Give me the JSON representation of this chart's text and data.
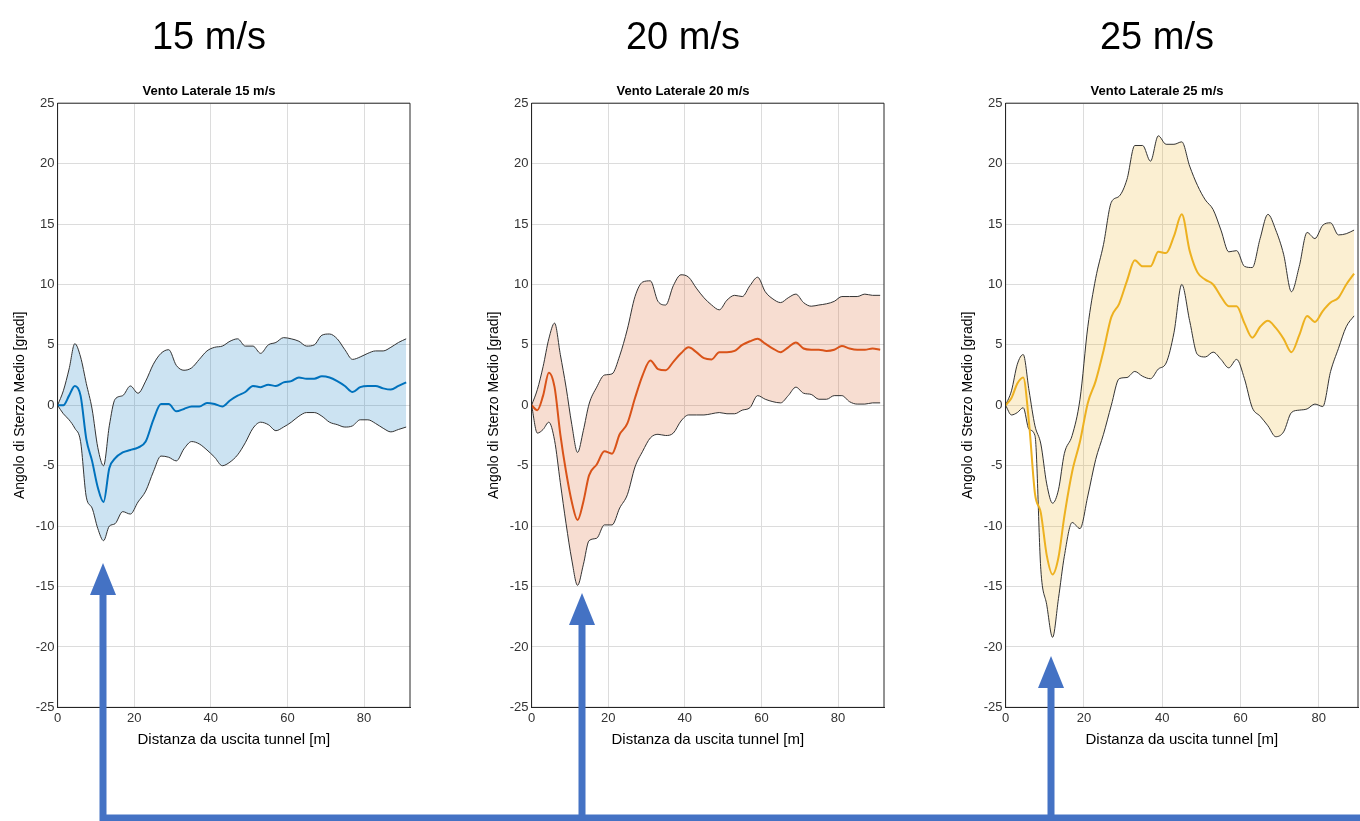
{
  "chart_data": [
    {
      "type": "line",
      "title": "15 m/s",
      "subtitle": "Vento Laterale 15 m/s",
      "xlabel": "Distanza da uscita tunnel [m]",
      "ylabel": "Angolo di Sterzo Medio [gradi]",
      "xlim": [
        0,
        92
      ],
      "xticks": [
        0,
        20,
        40,
        60,
        80
      ],
      "ylim": [
        -25,
        25
      ],
      "yticks": [
        -25,
        -20,
        -15,
        -10,
        -5,
        0,
        5,
        10,
        15,
        20,
        25
      ],
      "grid": true,
      "x": [
        0,
        1.5,
        3,
        4.5,
        6,
        7.5,
        9,
        10.5,
        12,
        13.5,
        15,
        17,
        19,
        21,
        23,
        25,
        27,
        29,
        31,
        33,
        35,
        37,
        39,
        41,
        43,
        45,
        47,
        49,
        51,
        53,
        55,
        57,
        59,
        61,
        63,
        65,
        67,
        69,
        71,
        73,
        75,
        77,
        79,
        81,
        83,
        85,
        87,
        89,
        91
      ],
      "series": [
        {
          "color": "#0072bd",
          "values": [
            0,
            0,
            0.8,
            1.6,
            0.8,
            -2.8,
            -4.6,
            -6.8,
            -8.0,
            -5.2,
            -4.4,
            -3.9,
            -3.7,
            -3.5,
            -3.0,
            -1.2,
            0.1,
            0.1,
            -0.5,
            -0.3,
            -0.1,
            -0.1,
            0.2,
            0.1,
            -0.1,
            0.4,
            0.8,
            1.1,
            1.6,
            1.5,
            1.7,
            1.6,
            1.9,
            2.0,
            2.3,
            2.2,
            2.2,
            2.4,
            2.3,
            2.0,
            1.6,
            1.1,
            1.5,
            1.6,
            1.6,
            1.4,
            1.3,
            1.6,
            1.9
          ],
          "upper": [
            0,
            1.2,
            3.0,
            5.1,
            4.0,
            1.8,
            -0.3,
            -3.5,
            -5.0,
            -1.7,
            0.5,
            0.8,
            1.6,
            1.0,
            2.0,
            3.4,
            4.3,
            4.6,
            3.3,
            2.9,
            3.1,
            3.8,
            4.5,
            4.8,
            4.9,
            5.3,
            5.5,
            4.9,
            4.9,
            4.3,
            5.0,
            5.2,
            5.6,
            5.5,
            5.3,
            4.9,
            5.0,
            5.8,
            5.9,
            5.5,
            4.6,
            3.8,
            4.0,
            4.3,
            4.5,
            4.5,
            4.8,
            5.2,
            5.5
          ],
          "lower": [
            0,
            -0.7,
            -1.2,
            -1.9,
            -3.0,
            -7.6,
            -8.5,
            -10.2,
            -11.2,
            -10.0,
            -9.8,
            -8.8,
            -9.0,
            -8.0,
            -7.1,
            -5.5,
            -4.2,
            -4.3,
            -4.6,
            -3.6,
            -3.0,
            -3.2,
            -3.7,
            -4.3,
            -5.0,
            -4.7,
            -4.1,
            -3.1,
            -1.9,
            -1.4,
            -1.6,
            -2.1,
            -1.8,
            -1.4,
            -0.9,
            -0.6,
            -0.6,
            -0.9,
            -1.4,
            -1.6,
            -1.8,
            -1.7,
            -1.2,
            -1.2,
            -1.5,
            -1.9,
            -2.2,
            -2.0,
            -1.8
          ]
        },
        {
          "type": "line",
          "color": "#333333",
          "values": [
            0,
            1.2,
            3.0,
            5.1,
            4.0,
            1.8,
            -0.3,
            -3.5,
            -5.0,
            -1.7,
            0.5,
            0.8,
            1.6,
            1.0,
            2.0,
            3.4,
            4.3,
            4.6,
            3.3,
            2.9,
            3.1,
            3.8,
            4.5,
            4.8,
            4.9,
            5.3,
            5.5,
            4.9,
            4.9,
            4.3,
            5.0,
            5.2,
            5.6,
            5.5,
            5.3,
            4.9,
            5.0,
            5.8,
            5.9,
            5.5,
            4.6,
            3.8,
            4.0,
            4.3,
            4.5,
            4.5,
            4.8,
            5.2,
            5.5
          ]
        },
        {
          "type": "line",
          "color": "#333333",
          "values": [
            0,
            -0.7,
            -1.2,
            -1.9,
            -3.0,
            -7.6,
            -8.5,
            -10.2,
            -11.2,
            -10.0,
            -9.8,
            -8.8,
            -9.0,
            -8.0,
            -7.1,
            -5.5,
            -4.2,
            -4.3,
            -4.6,
            -3.6,
            -3.0,
            -3.2,
            -3.7,
            -4.3,
            -5.0,
            -4.7,
            -4.1,
            -3.1,
            -1.9,
            -1.4,
            -1.6,
            -2.1,
            -1.8,
            -1.4,
            -0.9,
            -0.6,
            -0.6,
            -0.9,
            -1.4,
            -1.6,
            -1.8,
            -1.7,
            -1.2,
            -1.2,
            -1.5,
            -1.9,
            -2.2,
            -2.0,
            -1.8
          ]
        }
      ]
    },
    {
      "type": "line",
      "title": "20 m/s",
      "subtitle": "Vento Laterale 20 m/s",
      "xlabel": "Distanza da uscita tunnel [m]",
      "ylabel": "Angolo di Sterzo Medio [gradi]",
      "xlim": [
        0,
        92
      ],
      "xticks": [
        0,
        20,
        40,
        60,
        80
      ],
      "ylim": [
        -25,
        25
      ],
      "yticks": [
        -25,
        -20,
        -15,
        -10,
        -5,
        0,
        5,
        10,
        15,
        20,
        25
      ],
      "grid": true,
      "x": [
        0,
        1.5,
        3,
        4.5,
        6,
        7.5,
        9,
        10.5,
        12,
        13.5,
        15,
        17,
        19,
        21,
        23,
        25,
        27,
        29,
        31,
        33,
        35,
        37,
        39,
        41,
        43,
        45,
        47,
        49,
        51,
        53,
        55,
        57,
        59,
        61,
        63,
        65,
        67,
        69,
        71,
        73,
        75,
        77,
        79,
        81,
        83,
        85,
        87,
        89,
        91
      ],
      "series": [
        {
          "color": "#d95319",
          "values": [
            0,
            -0.4,
            0.8,
            2.7,
            1.5,
            -2.4,
            -5.5,
            -8.0,
            -9.5,
            -8.0,
            -5.8,
            -4.9,
            -3.8,
            -4.0,
            -2.4,
            -1.5,
            0.6,
            2.5,
            3.7,
            3.0,
            2.9,
            3.6,
            4.3,
            4.8,
            4.4,
            3.9,
            3.8,
            4.4,
            4.4,
            4.5,
            5.0,
            5.3,
            5.5,
            5.1,
            4.7,
            4.4,
            4.8,
            5.2,
            4.7,
            4.6,
            4.6,
            4.5,
            4.6,
            4.9,
            4.7,
            4.6,
            4.6,
            4.7,
            4.6
          ],
          "upper": [
            0,
            1.3,
            3.2,
            5.5,
            6.8,
            4.2,
            1.5,
            -1.6,
            -3.9,
            -2.1,
            0.1,
            1.5,
            2.5,
            2.6,
            4.1,
            6.3,
            9.0,
            10.2,
            10.3,
            8.6,
            8.3,
            9.9,
            10.8,
            10.6,
            9.7,
            8.9,
            8.3,
            7.9,
            8.7,
            9.1,
            9.0,
            9.9,
            10.6,
            9.4,
            8.8,
            8.5,
            8.9,
            9.2,
            8.5,
            8.2,
            8.3,
            8.4,
            8.6,
            9.0,
            9.0,
            9.0,
            9.2,
            9.1,
            9.1
          ],
          "lower": [
            0,
            -2.3,
            -2.0,
            -1.4,
            -2.9,
            -6.4,
            -9.8,
            -12.8,
            -14.9,
            -13.2,
            -11.2,
            -11.0,
            -9.9,
            -9.9,
            -8.5,
            -7.4,
            -5.1,
            -3.8,
            -2.7,
            -2.4,
            -2.5,
            -2.3,
            -1.3,
            -0.8,
            -0.8,
            -0.8,
            -0.7,
            -0.6,
            -0.7,
            -0.7,
            -0.4,
            -0.2,
            0.8,
            0.5,
            0.3,
            0.2,
            0.8,
            1.5,
            1.0,
            0.9,
            0.5,
            0.5,
            0.8,
            0.8,
            0.3,
            0.1,
            0.1,
            0.2,
            0.2
          ]
        },
        {
          "type": "line",
          "color": "#333333",
          "values": [
            0,
            1.3,
            3.2,
            5.5,
            6.8,
            4.2,
            1.5,
            -1.6,
            -3.9,
            -2.1,
            0.1,
            1.5,
            2.5,
            2.6,
            4.1,
            6.3,
            9.0,
            10.2,
            10.3,
            8.6,
            8.3,
            9.9,
            10.8,
            10.6,
            9.7,
            8.9,
            8.3,
            7.9,
            8.7,
            9.1,
            9.0,
            9.9,
            10.6,
            9.4,
            8.8,
            8.5,
            8.9,
            9.2,
            8.5,
            8.2,
            8.3,
            8.4,
            8.6,
            9.0,
            9.0,
            9.0,
            9.2,
            9.1,
            9.1
          ]
        },
        {
          "type": "line",
          "color": "#333333",
          "values": [
            0,
            -2.3,
            -2.0,
            -1.4,
            -2.9,
            -6.4,
            -9.8,
            -12.8,
            -14.9,
            -13.2,
            -11.2,
            -11.0,
            -9.9,
            -9.9,
            -8.5,
            -7.4,
            -5.1,
            -3.8,
            -2.7,
            -2.4,
            -2.5,
            -2.3,
            -1.3,
            -0.8,
            -0.8,
            -0.8,
            -0.7,
            -0.6,
            -0.7,
            -0.7,
            -0.4,
            -0.2,
            0.8,
            0.5,
            0.3,
            0.2,
            0.8,
            1.5,
            1.0,
            0.9,
            0.5,
            0.5,
            0.8,
            0.8,
            0.3,
            0.1,
            0.1,
            0.2,
            0.2
          ]
        }
      ]
    },
    {
      "type": "line",
      "title": "25 m/s",
      "subtitle": "Vento Laterale 25 m/s",
      "xlabel": "Distanza da uscita tunnel [m]",
      "ylabel": "Angolo di Sterzo Medio [gradi]",
      "xlim": [
        0,
        90
      ],
      "xticks": [
        0,
        20,
        40,
        60,
        80
      ],
      "ylim": [
        -25,
        25
      ],
      "yticks": [
        -25,
        -20,
        -15,
        -10,
        -5,
        0,
        5,
        10,
        15,
        20,
        25
      ],
      "grid": true,
      "x": [
        0,
        1.5,
        3,
        4.5,
        6,
        7.5,
        9,
        10.5,
        12,
        13.5,
        15,
        17,
        19,
        21,
        23,
        25,
        27,
        29,
        31,
        33,
        35,
        37,
        39,
        41,
        43,
        45,
        47,
        49,
        51,
        53,
        55,
        57,
        59,
        61,
        63,
        65,
        67,
        69,
        71,
        73,
        75,
        77,
        79,
        81,
        83,
        85,
        87,
        89
      ],
      "series": [
        {
          "color": "#edb120",
          "values": [
            0,
            0.6,
            1.8,
            2.3,
            -1.5,
            -7.3,
            -8.9,
            -12.4,
            -14.0,
            -12.6,
            -9.2,
            -5.5,
            -3.0,
            0.2,
            2.0,
            4.5,
            7.3,
            8.4,
            10.3,
            12.0,
            11.5,
            11.5,
            12.7,
            12.6,
            14.0,
            15.8,
            12.8,
            11.0,
            10.4,
            10.0,
            9.0,
            8.2,
            8.2,
            6.8,
            5.6,
            6.5,
            7.0,
            6.4,
            5.5,
            4.4,
            5.8,
            7.4,
            6.9,
            7.8,
            8.5,
            8.9,
            10.0,
            10.9
          ],
          "upper": [
            0,
            1.2,
            3.4,
            4.2,
            1.2,
            -1.7,
            -3.2,
            -6.5,
            -8.1,
            -7.0,
            -4.0,
            -2.5,
            0.5,
            6.5,
            10.5,
            13.3,
            16.8,
            17.3,
            18.7,
            21.5,
            21.5,
            20.2,
            22.3,
            21.6,
            21.6,
            21.8,
            19.8,
            18.2,
            17.0,
            16.2,
            14.5,
            12.7,
            12.8,
            11.5,
            11.4,
            13.8,
            15.8,
            14.5,
            12.5,
            9.4,
            11.5,
            14.3,
            13.8,
            14.9,
            15.1,
            14.1,
            14.2,
            14.5
          ],
          "lower": [
            0,
            -0.8,
            -0.6,
            -0.2,
            -2.0,
            -2.5,
            -13.6,
            -16.5,
            -19.2,
            -16.0,
            -12.5,
            -9.7,
            -10.2,
            -7.5,
            -4.5,
            -2.4,
            0.0,
            2.2,
            2.3,
            2.8,
            2.4,
            2.2,
            3.0,
            3.5,
            6.0,
            10.0,
            7.0,
            4.2,
            4.0,
            4.4,
            3.8,
            3.1,
            3.8,
            2.2,
            -0.2,
            -0.9,
            -1.7,
            -2.6,
            -2.2,
            -0.6,
            -0.4,
            -0.3,
            0.1,
            -0.1,
            2.8,
            4.7,
            6.5,
            7.4
          ]
        },
        {
          "type": "line",
          "color": "#333333",
          "values": [
            0,
            1.2,
            3.4,
            4.2,
            1.2,
            -1.7,
            -3.2,
            -6.5,
            -8.1,
            -7.0,
            -4.0,
            -2.5,
            0.5,
            6.5,
            10.5,
            13.3,
            16.8,
            17.3,
            18.7,
            21.5,
            21.5,
            20.2,
            22.3,
            21.6,
            21.6,
            21.8,
            19.8,
            18.2,
            17.0,
            16.2,
            14.5,
            12.7,
            12.8,
            11.5,
            11.4,
            13.8,
            15.8,
            14.5,
            12.5,
            9.4,
            11.5,
            14.3,
            13.8,
            14.9,
            15.1,
            14.1,
            14.2,
            14.5
          ]
        },
        {
          "type": "line",
          "color": "#333333",
          "values": [
            0,
            -0.8,
            -0.6,
            -0.2,
            -2.0,
            -2.5,
            -13.6,
            -16.5,
            -19.2,
            -16.0,
            -12.5,
            -9.7,
            -10.2,
            -7.5,
            -4.5,
            -2.4,
            0.0,
            2.2,
            2.3,
            2.8,
            2.4,
            2.2,
            3.0,
            3.5,
            6.0,
            10.0,
            7.0,
            4.2,
            4.0,
            4.4,
            3.8,
            3.1,
            3.8,
            2.2,
            -0.2,
            -0.9,
            -1.7,
            -2.6,
            -2.2,
            -0.6,
            -0.4,
            -0.3,
            0.1,
            -0.1,
            2.8,
            4.7,
            6.5,
            7.4
          ]
        }
      ]
    }
  ]
}
